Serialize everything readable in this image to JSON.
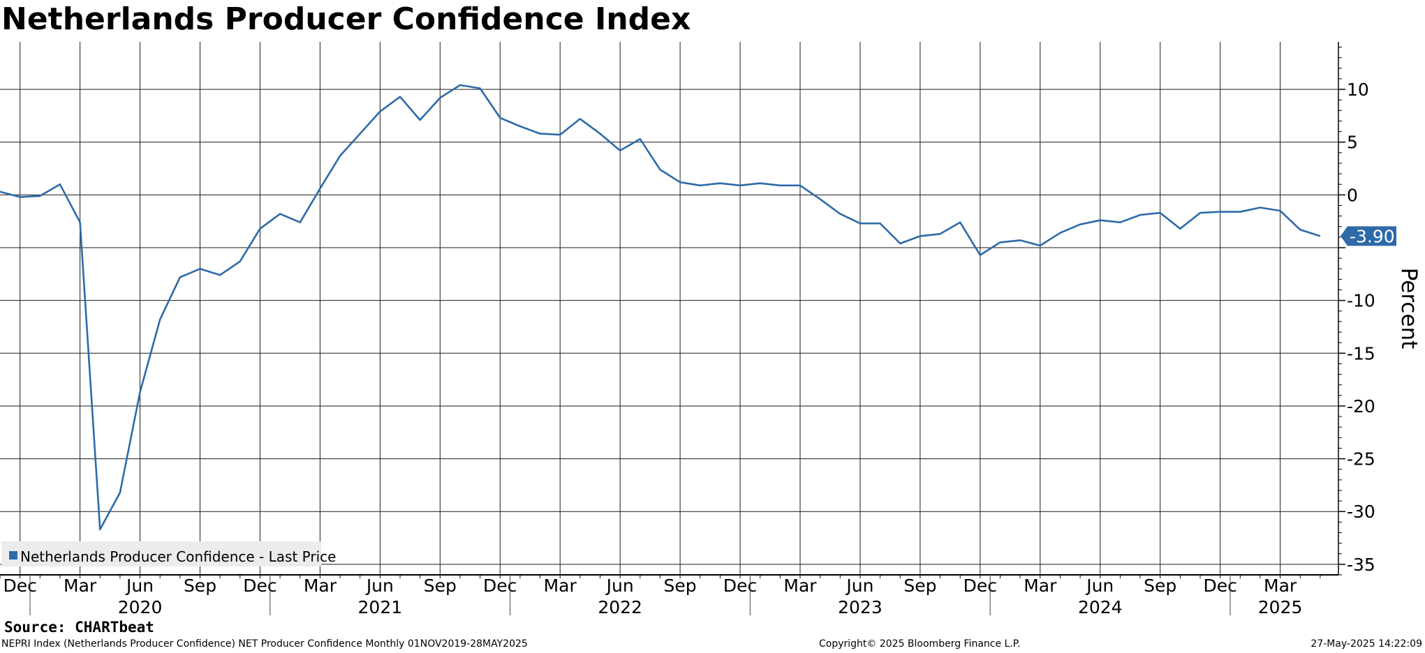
{
  "chart_data": {
    "type": "line",
    "title": "Netherlands Producer Confidence Index",
    "ylabel": "Percent",
    "ylim": [
      -36,
      14.5
    ],
    "yticks": [
      10,
      5,
      0,
      -5,
      -10,
      -15,
      -20,
      -25,
      -30,
      -35
    ],
    "ytick_labels": [
      "10",
      "5",
      "0",
      "",
      "-10",
      "-15",
      "-20",
      "-25",
      "-30",
      "-35"
    ],
    "grid": true,
    "legend_position": "bottom-left",
    "x_month_labels": [
      {
        "date": "2019-12",
        "label": "Dec"
      },
      {
        "date": "2020-03",
        "label": "Mar"
      },
      {
        "date": "2020-06",
        "label": "Jun"
      },
      {
        "date": "2020-09",
        "label": "Sep"
      },
      {
        "date": "2020-12",
        "label": "Dec"
      },
      {
        "date": "2021-03",
        "label": "Mar"
      },
      {
        "date": "2021-06",
        "label": "Jun"
      },
      {
        "date": "2021-09",
        "label": "Sep"
      },
      {
        "date": "2021-12",
        "label": "Dec"
      },
      {
        "date": "2022-03",
        "label": "Mar"
      },
      {
        "date": "2022-06",
        "label": "Jun"
      },
      {
        "date": "2022-09",
        "label": "Sep"
      },
      {
        "date": "2022-12",
        "label": "Dec"
      },
      {
        "date": "2023-03",
        "label": "Mar"
      },
      {
        "date": "2023-06",
        "label": "Jun"
      },
      {
        "date": "2023-09",
        "label": "Sep"
      },
      {
        "date": "2023-12",
        "label": "Dec"
      },
      {
        "date": "2024-03",
        "label": "Mar"
      },
      {
        "date": "2024-06",
        "label": "Jun"
      },
      {
        "date": "2024-09",
        "label": "Sep"
      },
      {
        "date": "2024-12",
        "label": "Dec"
      },
      {
        "date": "2025-03",
        "label": "Mar"
      }
    ],
    "x_year_labels": [
      {
        "date": "2020-06",
        "label": "2020"
      },
      {
        "date": "2021-06",
        "label": "2021"
      },
      {
        "date": "2022-06",
        "label": "2022"
      },
      {
        "date": "2023-06",
        "label": "2023"
      },
      {
        "date": "2024-06",
        "label": "2024"
      },
      {
        "date": "2025-03",
        "label": "2025"
      }
    ],
    "series": [
      {
        "name": "Netherlands Producer Confidence - Last Price",
        "color": "#2e6aa8",
        "x": [
          "2019-11",
          "2019-12",
          "2020-01",
          "2020-02",
          "2020-03",
          "2020-04",
          "2020-05",
          "2020-06",
          "2020-07",
          "2020-08",
          "2020-09",
          "2020-10",
          "2020-11",
          "2020-12",
          "2021-01",
          "2021-02",
          "2021-03",
          "2021-04",
          "2021-05",
          "2021-06",
          "2021-07",
          "2021-08",
          "2021-09",
          "2021-10",
          "2021-11",
          "2021-12",
          "2022-01",
          "2022-02",
          "2022-03",
          "2022-04",
          "2022-05",
          "2022-06",
          "2022-07",
          "2022-08",
          "2022-09",
          "2022-10",
          "2022-11",
          "2022-12",
          "2023-01",
          "2023-02",
          "2023-03",
          "2023-04",
          "2023-05",
          "2023-06",
          "2023-07",
          "2023-08",
          "2023-09",
          "2023-10",
          "2023-11",
          "2023-12",
          "2024-01",
          "2024-02",
          "2024-03",
          "2024-04",
          "2024-05",
          "2024-06",
          "2024-07",
          "2024-08",
          "2024-09",
          "2024-10",
          "2024-11",
          "2024-12",
          "2025-01",
          "2025-02",
          "2025-03",
          "2025-04",
          "2025-05"
        ],
        "values": [
          0.3,
          -0.2,
          -0.1,
          1.0,
          -2.6,
          -31.7,
          -28.2,
          -18.7,
          -11.8,
          -7.8,
          -7.0,
          -7.6,
          -6.3,
          -3.2,
          -1.8,
          -2.6,
          0.6,
          3.7,
          5.8,
          7.9,
          9.3,
          7.1,
          9.2,
          10.4,
          10.1,
          7.3,
          6.5,
          5.8,
          5.7,
          7.2,
          5.8,
          4.2,
          5.3,
          2.4,
          1.2,
          0.9,
          1.1,
          0.9,
          1.1,
          0.9,
          0.9,
          -0.4,
          -1.8,
          -2.7,
          -2.7,
          -4.6,
          -3.9,
          -3.7,
          -2.6,
          -5.7,
          -4.5,
          -4.3,
          -4.8,
          -3.6,
          -2.8,
          -2.4,
          -2.6,
          -1.9,
          -1.7,
          -3.2,
          -1.7,
          -1.6,
          -1.6,
          -1.2,
          -1.5,
          -3.3,
          -3.9
        ]
      }
    ],
    "last_value_label": "-3.90"
  },
  "footer": {
    "source": "Source: CHARTbeat",
    "description": "NEPRI Index (Netherlands Producer Confidence) NET Producer Confidence  Monthly 01NOV2019-28MAY2025",
    "copyright": "Copyright© 2025 Bloomberg Finance L.P.",
    "timestamp": "27-May-2025 14:22:09"
  }
}
